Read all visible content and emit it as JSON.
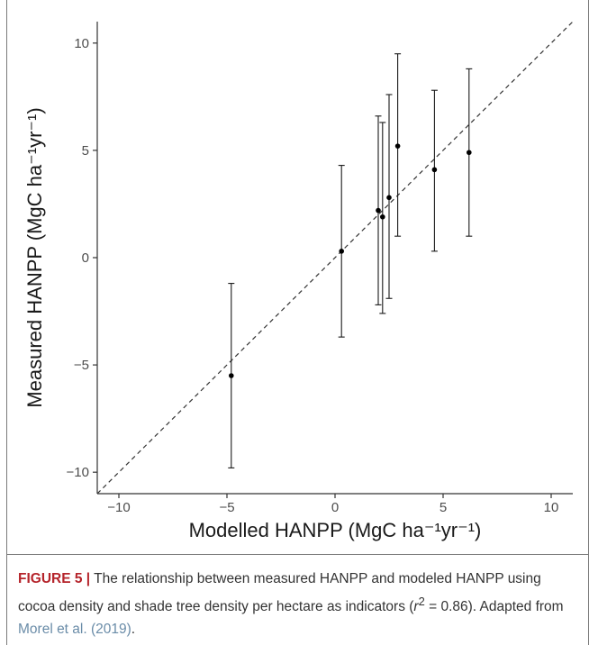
{
  "chart_data": {
    "type": "scatter",
    "title": "",
    "xlabel": "Modelled HANPP (MgC ha⁻¹yr⁻¹)",
    "ylabel": "Measured HANPP (MgC ha⁻¹yr⁻¹)",
    "xlim": [
      -11,
      11
    ],
    "ylim": [
      -11,
      11
    ],
    "x_ticks": [
      -10,
      -5,
      0,
      5,
      10
    ],
    "y_ticks": [
      -10,
      -5,
      0,
      5,
      10
    ],
    "x_tick_labels": [
      "−10",
      "−5",
      "0",
      "5",
      "10"
    ],
    "y_tick_labels": [
      "−10",
      "−5",
      "0",
      "5",
      "10"
    ],
    "grid": false,
    "reference_line": {
      "style": "dashed",
      "slope": 1,
      "intercept": 0
    },
    "points": [
      {
        "x": -4.8,
        "y": -5.5,
        "ymin": -9.8,
        "ymax": -1.2
      },
      {
        "x": 0.3,
        "y": 0.3,
        "ymin": -3.7,
        "ymax": 4.3
      },
      {
        "x": 2.0,
        "y": 2.2,
        "ymin": -2.2,
        "ymax": 6.6
      },
      {
        "x": 2.2,
        "y": 1.9,
        "ymin": -2.6,
        "ymax": 6.3
      },
      {
        "x": 2.5,
        "y": 2.8,
        "ymin": -1.9,
        "ymax": 7.6
      },
      {
        "x": 2.9,
        "y": 5.2,
        "ymin": 1.0,
        "ymax": 9.5
      },
      {
        "x": 4.6,
        "y": 4.1,
        "ymin": 0.3,
        "ymax": 7.8
      },
      {
        "x": 6.2,
        "y": 4.9,
        "ymin": 1.0,
        "ymax": 8.8
      }
    ]
  },
  "caption": {
    "label": "FIGURE 5 |",
    "text_before_r": " The relationship between measured HANPP and modeled HANPP using cocoa density and shade tree density per hectare as indicators (",
    "r_symbol": "r",
    "r_exp": "2",
    "text_after_r": " = 0.86). Adapted from ",
    "reference": "Morel et al. (2019)",
    "end": "."
  }
}
